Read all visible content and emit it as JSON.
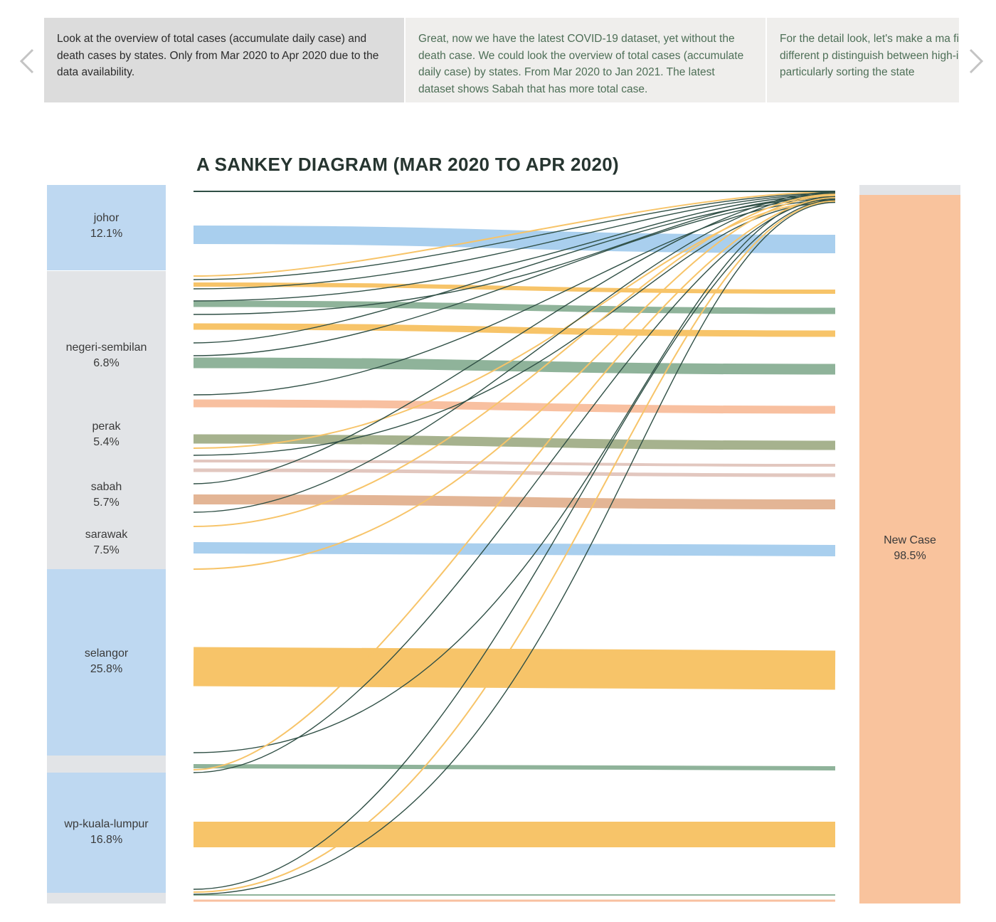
{
  "carousel": {
    "prev_icon": "chevron-left-icon",
    "next_icon": "chevron-right-icon",
    "cards": [
      {
        "text": "Look at the overview of total cases (accumulate daily case) and death cases by states. Only from Mar 2020 to Apr 2020 due to the data availability."
      },
      {
        "text": "Great, now we have the latest COVID-19 dataset, yet without the death case. We could look the overview of total cases (accumulate daily case) by states. From Mar 2020 to Jan 2021. The latest dataset shows Sabah that has more total case."
      },
      {
        "text": "For the detail look, let's make a ma figures used a color but different p distinguish between high-interme graph particularly sorting the state"
      }
    ]
  },
  "diagram": {
    "title": "A SANKEY DIAGRAM (MAR 2020 TO APR 2020)",
    "source_nodes": [
      {
        "name": "johor",
        "pct": "12.1%"
      },
      {
        "name": "negeri-sembilan",
        "pct": "6.8%"
      },
      {
        "name": "perak",
        "pct": "5.4%"
      },
      {
        "name": "sabah",
        "pct": "5.7%"
      },
      {
        "name": "sarawak",
        "pct": "7.5%"
      },
      {
        "name": "selangor",
        "pct": "25.8%"
      },
      {
        "name": "wp-kuala-lumpur",
        "pct": "16.8%"
      }
    ],
    "target_nodes": [
      {
        "name": "New Case",
        "pct": "98.5%"
      }
    ],
    "colors": {
      "blue": "#a9cfee",
      "orange": "#f7c469",
      "green": "#8fb39a",
      "salmon": "#f8c0a0",
      "olive": "#a6b28e",
      "pink": "#e2c7bf",
      "tan": "#e3b595",
      "dark_line": "#2f4f45",
      "node_grey": "#e2e4e7",
      "node_blue": "#bed8f1",
      "node_target": "#f9c39d"
    }
  }
}
